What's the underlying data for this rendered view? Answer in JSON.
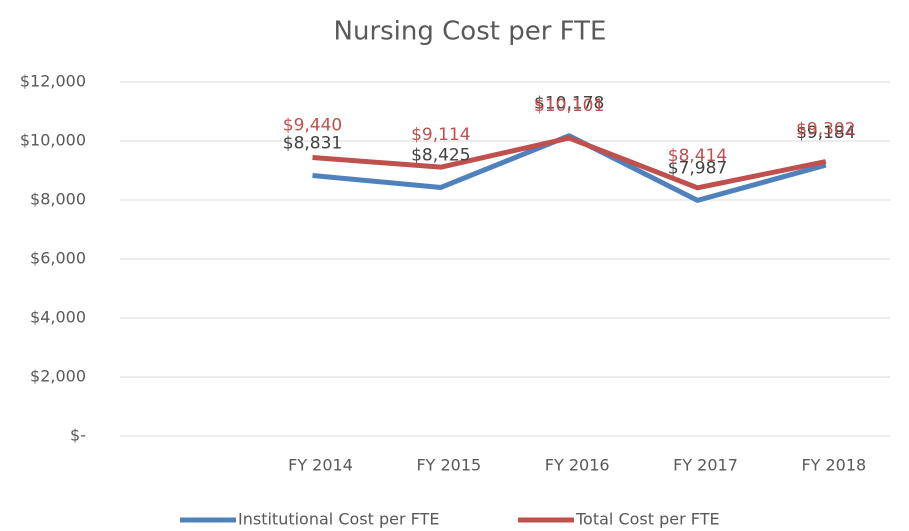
{
  "chart_data": {
    "type": "line",
    "title": "Nursing Cost per FTE",
    "categories": [
      null,
      "FY 2014",
      "FY 2015",
      "FY 2016",
      "FY 2017",
      "FY 2018"
    ],
    "series": [
      {
        "name": "Institutional Cost per FTE",
        "color": "#4f81bd",
        "label_color": "#404040",
        "values": [
          null,
          8831,
          8425,
          10178,
          7987,
          9184
        ],
        "value_labels": [
          null,
          "$8,831",
          "$8,425",
          "$10,178",
          "$7,987",
          "$9,184"
        ]
      },
      {
        "name": "Total Cost per FTE",
        "color": "#c0504d",
        "label_color": "#c0504d",
        "values": [
          null,
          9440,
          9114,
          10101,
          8414,
          9302
        ],
        "value_labels": [
          null,
          "$9,440",
          "$9,114",
          "$10,101",
          "$8,414",
          "$9,302"
        ]
      }
    ],
    "ylim": [
      0,
      12000
    ],
    "yticks": [
      {
        "value": 0,
        "label": "$-"
      },
      {
        "value": 2000,
        "label": "$2,000"
      },
      {
        "value": 4000,
        "label": "$4,000"
      },
      {
        "value": 6000,
        "label": "$6,000"
      },
      {
        "value": 8000,
        "label": "$8,000"
      },
      {
        "value": 10000,
        "label": "$10,000"
      },
      {
        "value": 12000,
        "label": "$12,000"
      }
    ],
    "grid": true,
    "legend": "bottom"
  }
}
